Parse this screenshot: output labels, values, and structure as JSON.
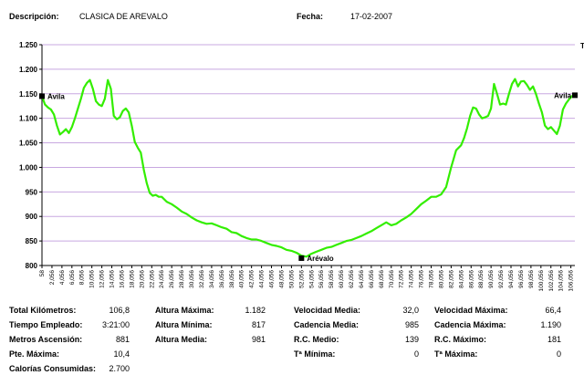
{
  "header": {
    "desc_label": "Descripción:",
    "desc_value": "CLASICA DE AREVALO",
    "fecha_label": "Fecha:",
    "fecha_value": "17-02-2007"
  },
  "chart_data": {
    "type": "line",
    "title": "",
    "xlabel": "",
    "ylabel": "",
    "ylim": [
      800,
      1250
    ],
    "yticks": [
      800,
      850,
      900,
      950,
      1000,
      1050,
      1100,
      1150,
      1200,
      1250
    ],
    "ytick_labels": [
      "800",
      "850",
      "900",
      "950",
      "1.000",
      "1.050",
      "1.100",
      "1.150",
      "1.200",
      "1.250"
    ],
    "xlim": [
      0,
      106.8
    ],
    "xticks": [
      0,
      2,
      4,
      6,
      8,
      10,
      12,
      14,
      16,
      18,
      20,
      22,
      24,
      26,
      28,
      30,
      32,
      34,
      36,
      38,
      40,
      42,
      44,
      46,
      48,
      50,
      52,
      54,
      56,
      58,
      60,
      62,
      64,
      66,
      68,
      70,
      72,
      74,
      76,
      78,
      80,
      82,
      84,
      86,
      88,
      90,
      92,
      94,
      96,
      98,
      100,
      102,
      104,
      106
    ],
    "xtick_labels": [
      "58",
      "2,056",
      "4,056",
      "6,056",
      "8,056",
      "10,056",
      "12,056",
      "14,056",
      "16,056",
      "18,056",
      "20,056",
      "22,056",
      "24,056",
      "26,056",
      "28,056",
      "30,056",
      "32,056",
      "34,056",
      "36,056",
      "38,056",
      "40,056",
      "42,056",
      "44,056",
      "46,056",
      "48,056",
      "50,056",
      "52,056",
      "54,056",
      "56,056",
      "58,056",
      "60,056",
      "62,056",
      "64,056",
      "66,056",
      "68,056",
      "70,056",
      "72,056",
      "74,056",
      "76,056",
      "78,056",
      "80,056",
      "82,056",
      "84,056",
      "86,056",
      "88,056",
      "90,056",
      "92,056",
      "94,056",
      "96,056",
      "98,056",
      "100,056",
      "102,056",
      "104,056",
      "106,056"
    ],
    "grid": true,
    "line_color": "#33ee00",
    "grid_color": "#c8a8e0",
    "series": [
      {
        "x": [
          0,
          0.6,
          1.2,
          1.8,
          2.4,
          3.0,
          3.6,
          4.2,
          4.8,
          5.4,
          6.0,
          6.6,
          7.2,
          7.8,
          8.4,
          9.0,
          9.6,
          10.2,
          10.8,
          11.4,
          12.0,
          12.6,
          13.2,
          13.8,
          14.4,
          15.0,
          15.6,
          16.2,
          16.8,
          17.4,
          18.0,
          18.6,
          19.2,
          19.8,
          20.4,
          21.0,
          21.6,
          22.2,
          22.8,
          23.4,
          24.0,
          25.0,
          26.0,
          27.0,
          28.0,
          29.0,
          30.0,
          31.0,
          32.0,
          33.0,
          34.0,
          35.0,
          36.0,
          37.0,
          38.0,
          39.0,
          40.0,
          41.0,
          42.0,
          43.0,
          44.0,
          45.0,
          46.0,
          47.0,
          48.0,
          49.0,
          50.0,
          51.0,
          52.0,
          53.0,
          54.0,
          55.0,
          56.0,
          57.0,
          58.0,
          59.0,
          60.0,
          61.0,
          62.0,
          63.0,
          64.0,
          65.0,
          66.0,
          67.0,
          68.0,
          69.0,
          70.0,
          71.0,
          72.0,
          73.0,
          74.0,
          75.0,
          76.0,
          77.0,
          78.0,
          79.0,
          80.0,
          81.0,
          82.0,
          83.0,
          84.0,
          84.6,
          85.2,
          85.8,
          86.4,
          87.0,
          87.6,
          88.2,
          88.8,
          89.4,
          90.0,
          90.6,
          91.2,
          91.8,
          92.4,
          93.0,
          93.6,
          94.2,
          94.8,
          95.4,
          96.0,
          96.6,
          97.2,
          97.8,
          98.4,
          99.0,
          99.6,
          100.2,
          100.8,
          101.4,
          102.0,
          102.6,
          103.2,
          103.8,
          104.4,
          105.0,
          105.6,
          106.2,
          106.8
        ],
        "y": [
          1145,
          1128,
          1122,
          1118,
          1108,
          1085,
          1067,
          1072,
          1078,
          1070,
          1082,
          1100,
          1120,
          1140,
          1162,
          1172,
          1178,
          1160,
          1135,
          1128,
          1125,
          1140,
          1178,
          1160,
          1105,
          1098,
          1102,
          1115,
          1120,
          1112,
          1085,
          1052,
          1040,
          1030,
          995,
          968,
          948,
          942,
          944,
          940,
          940,
          930,
          925,
          918,
          910,
          905,
          898,
          892,
          888,
          885,
          886,
          882,
          878,
          875,
          868,
          866,
          860,
          856,
          853,
          853,
          850,
          846,
          842,
          840,
          837,
          832,
          830,
          826,
          820,
          818,
          824,
          828,
          832,
          836,
          838,
          842,
          846,
          850,
          852,
          856,
          860,
          865,
          870,
          876,
          882,
          888,
          882,
          885,
          892,
          898,
          905,
          915,
          925,
          932,
          940,
          940,
          945,
          960,
          1000,
          1035,
          1045,
          1060,
          1080,
          1105,
          1122,
          1120,
          1108,
          1100,
          1102,
          1105,
          1120,
          1170,
          1150,
          1128,
          1130,
          1128,
          1150,
          1170,
          1180,
          1165,
          1175,
          1176,
          1168,
          1158,
          1165,
          1150,
          1130,
          1112,
          1085,
          1078,
          1082,
          1075,
          1068,
          1085,
          1118,
          1130,
          1138,
          1145,
          1148
        ]
      }
    ],
    "markers": [
      {
        "x": 0,
        "y": 1145,
        "label": "Avila"
      },
      {
        "x": 52.0,
        "y": 815,
        "label": "Arévalo"
      },
      {
        "x": 106.8,
        "y": 1147,
        "label": "Avila"
      }
    ],
    "truncated_label": "T"
  },
  "stats": {
    "col1": [
      {
        "label": "Total Kilómetros:",
        "value": "106,8"
      },
      {
        "label": "Tiempo Empleado:",
        "value": "3:21:00"
      },
      {
        "label": "Metros Ascensión:",
        "value": "881"
      },
      {
        "label": "Pte. Máxima:",
        "value": "10,4"
      },
      {
        "label": "Calorías Consumidas:",
        "value": "2.700"
      }
    ],
    "col2": [
      {
        "label": "Altura Máxima:",
        "value": "1.182"
      },
      {
        "label": "Altura Mínima:",
        "value": "817"
      },
      {
        "label": "Altura Media:",
        "value": "981"
      }
    ],
    "col3": [
      {
        "label": "Velocidad Media:",
        "value": "32,0"
      },
      {
        "label": "Cadencia Media:",
        "value": "985"
      },
      {
        "label": "R.C. Medio:",
        "value": "139"
      },
      {
        "label": "Tª Mínima:",
        "value": "0"
      }
    ],
    "col4": [
      {
        "label": "Velocidad Máxima:",
        "value": "66,4"
      },
      {
        "label": "Cadencia Máxima:",
        "value": "1.190"
      },
      {
        "label": "R.C. Máximo:",
        "value": "181"
      },
      {
        "label": "Tª Máxima:",
        "value": "0"
      }
    ]
  }
}
